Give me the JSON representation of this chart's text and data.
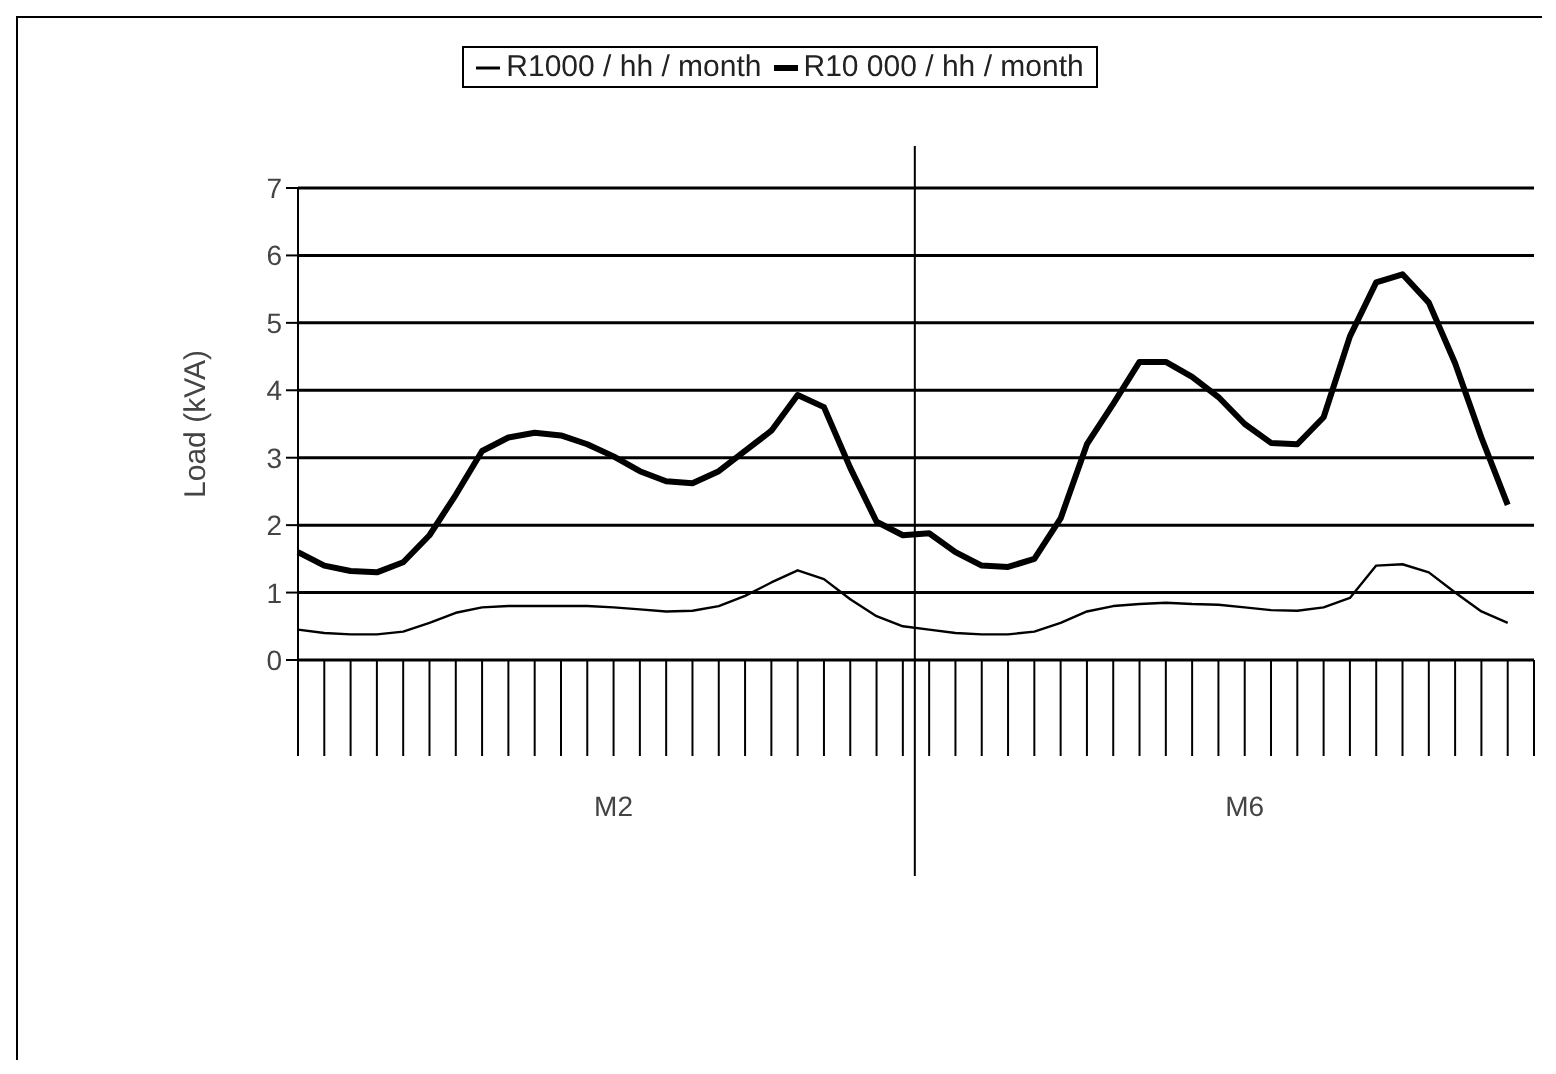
{
  "chart_data": {
    "type": "line",
    "ylabel": "Load (kVA)",
    "categories": [
      null,
      null,
      null,
      null,
      null,
      null,
      null,
      null,
      null,
      null,
      null,
      null,
      "M2",
      null,
      null,
      null,
      null,
      null,
      null,
      null,
      null,
      null,
      null,
      null,
      null,
      null,
      null,
      null,
      null,
      null,
      null,
      null,
      null,
      null,
      null,
      null,
      "M6",
      null,
      null,
      null,
      null,
      null,
      null,
      null,
      null,
      null,
      null,
      null
    ],
    "series": [
      {
        "name": "R1000 / hh / month",
        "color": "#000000",
        "values": [
          0.45,
          0.4,
          0.38,
          0.38,
          0.42,
          0.55,
          0.7,
          0.78,
          0.8,
          0.8,
          0.8,
          0.8,
          0.78,
          0.75,
          0.72,
          0.73,
          0.8,
          0.95,
          1.15,
          1.33,
          1.2,
          0.9,
          0.65,
          0.5,
          0.45,
          0.4,
          0.38,
          0.38,
          0.42,
          0.55,
          0.72,
          0.8,
          0.83,
          0.85,
          0.83,
          0.82,
          0.78,
          0.74,
          0.73,
          0.78,
          0.92,
          1.4,
          1.42,
          1.3,
          1.0,
          0.72,
          0.55,
          null
        ]
      },
      {
        "name": "R10 000 / hh / month",
        "color": "#000000",
        "values": [
          1.6,
          1.4,
          1.32,
          1.3,
          1.45,
          1.85,
          2.45,
          3.1,
          3.3,
          3.37,
          3.33,
          3.2,
          3.02,
          2.8,
          2.65,
          2.62,
          2.8,
          3.1,
          3.4,
          3.93,
          3.75,
          2.85,
          2.05,
          1.85,
          1.88,
          1.6,
          1.4,
          1.38,
          1.5,
          2.1,
          3.2,
          3.8,
          4.42,
          4.42,
          4.2,
          3.9,
          3.5,
          3.22,
          3.2,
          3.6,
          4.8,
          5.6,
          5.72,
          5.3,
          4.4,
          3.3,
          2.3,
          null
        ]
      }
    ],
    "ylim": [
      0,
      7
    ],
    "yticks": [
      0,
      1,
      2,
      3,
      4,
      5,
      6,
      7
    ],
    "grid": "y",
    "legend": "top",
    "marker": "none",
    "line_style": "solid"
  }
}
